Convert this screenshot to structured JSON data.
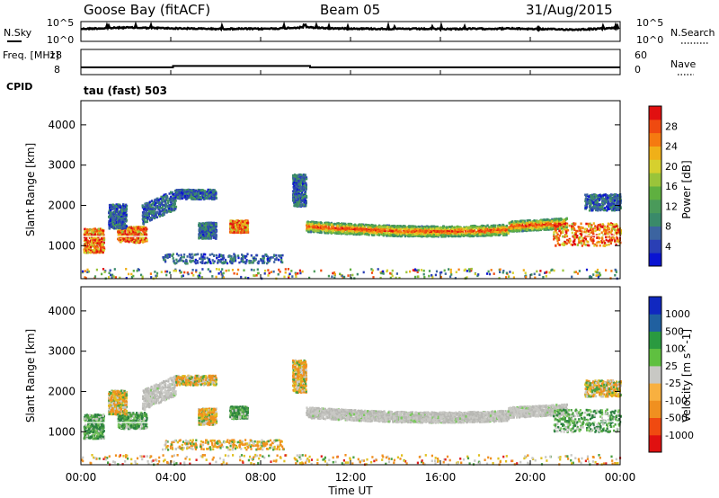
{
  "header": {
    "station": "Goose Bay (fitACF)",
    "beam": "Beam 05",
    "date": "31/Aug/2015"
  },
  "cpid": {
    "label": "CPID",
    "value": "tau (fast) 503"
  },
  "chart_data": [
    {
      "type": "line",
      "name": "nsky-nsearch",
      "ylabel_left": "N.Sky",
      "ylabel_right": "N.Search",
      "left_ticks": [
        "10^5",
        "10^0"
      ],
      "right_ticks": [
        "10^5",
        "10^0"
      ],
      "scale": "log",
      "series": [
        {
          "name": "N.Sky",
          "x": [
            0,
            1,
            2,
            3,
            4,
            5,
            6,
            7,
            8,
            9,
            10,
            11,
            12,
            13,
            14,
            15,
            16,
            17,
            18,
            19,
            20,
            21,
            22,
            23,
            24
          ],
          "values": [
            2000,
            3000,
            5000,
            4000,
            3000,
            2500,
            2000,
            2200,
            2000,
            3000,
            6000,
            3000,
            2500,
            2200,
            2000,
            2000,
            1800,
            2000,
            2200,
            2500,
            2000,
            1500,
            1200,
            2000,
            4000
          ]
        }
      ]
    },
    {
      "type": "line",
      "name": "freq-nave",
      "ylabel_left": "Freq. [MHz]",
      "ylabel_right": "Nave",
      "left_ticks": [
        "18",
        "8"
      ],
      "right_ticks": [
        "60",
        "0"
      ],
      "series": [
        {
          "name": "Freq",
          "x": [
            0,
            4.1,
            4.1,
            10.2,
            10.2,
            24
          ],
          "values": [
            10.3,
            10.3,
            11.0,
            11.0,
            10.3,
            10.3
          ]
        }
      ]
    },
    {
      "type": "heatmap",
      "name": "power",
      "ylabel": "Slant Range [km]",
      "ylim": [
        180,
        4600
      ],
      "yticks": [
        1000,
        2000,
        3000,
        4000
      ],
      "colorbar": {
        "label": "Power [dB]",
        "ticks": [
          "4",
          "8",
          "12",
          "16",
          "20",
          "24",
          "28"
        ]
      }
    },
    {
      "type": "heatmap",
      "name": "velocity",
      "ylabel": "Slant Range [km]",
      "ylim": [
        180,
        4600
      ],
      "yticks": [
        1000,
        2000,
        3000,
        4000
      ],
      "colorbar": {
        "label": "Velocity [m s^-1]",
        "ticks": [
          "1000",
          "500",
          "100",
          "25",
          "-25",
          "-100",
          "-500",
          "-1000"
        ]
      }
    }
  ],
  "xaxis": {
    "label": "Time UT",
    "ticks": [
      "00:00",
      "04:00",
      "08:00",
      "12:00",
      "16:00",
      "20:00",
      "00:00"
    ]
  }
}
